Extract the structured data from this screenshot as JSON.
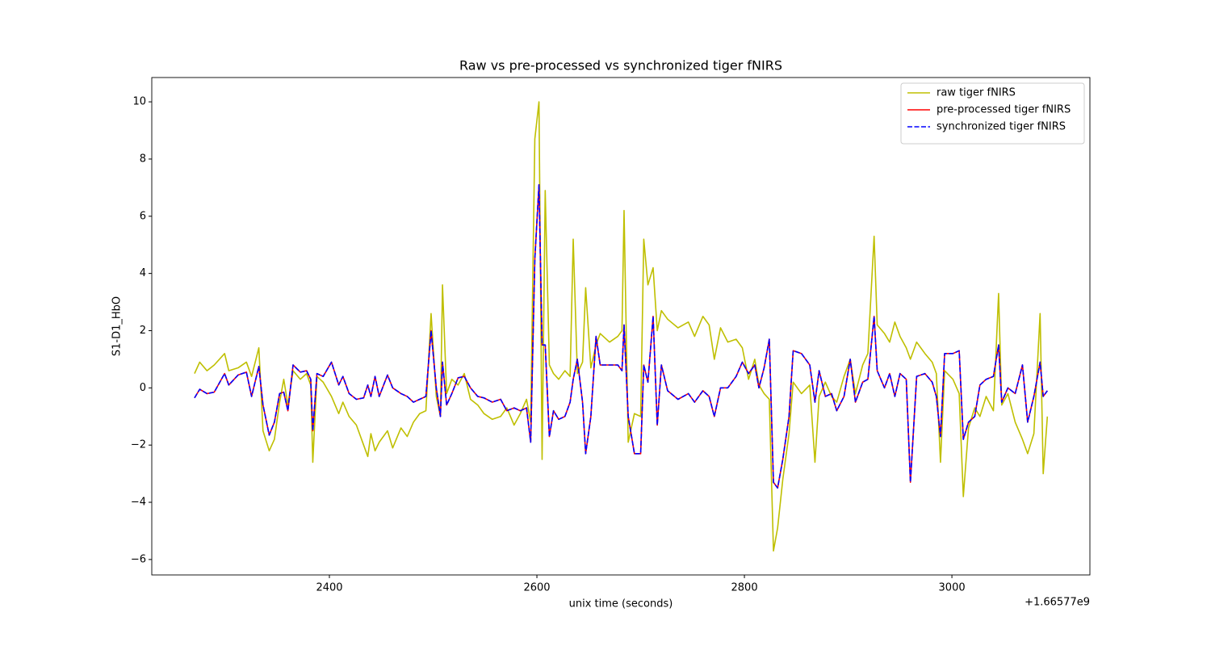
{
  "chart_data": {
    "type": "line",
    "title": "Raw vs pre-processed vs synchronized tiger fNIRS",
    "x_label": "unix time (seconds)",
    "y_label": "S1-D1_HbO",
    "x_offset_label": "+1.66577e9",
    "xlim": [
      2228.8,
      3133
    ],
    "ylim": [
      -6.54,
      10.85
    ],
    "xticks": [
      2400,
      2600,
      2800,
      3000
    ],
    "yticks": [
      {
        "value": -6,
        "label": "−6"
      },
      {
        "value": -4,
        "label": "−4"
      },
      {
        "value": -2,
        "label": "−2"
      },
      0,
      2,
      4,
      6,
      8,
      10
    ],
    "legend": "upper right",
    "x": [
      2270,
      2275,
      2282,
      2289,
      2299,
      2303,
      2312,
      2320,
      2325,
      2332,
      2336,
      2342,
      2347,
      2352,
      2356,
      2360,
      2365,
      2372,
      2378,
      2382,
      2384,
      2388,
      2394,
      2402,
      2409,
      2413,
      2419,
      2426,
      2433,
      2437,
      2440,
      2444,
      2448,
      2456,
      2461,
      2469,
      2475,
      2481,
      2487,
      2493,
      2498,
      2503,
      2507,
      2509,
      2513,
      2518,
      2524,
      2530,
      2536,
      2543,
      2549,
      2557,
      2565,
      2571,
      2578,
      2584,
      2590,
      2594,
      2598,
      2602,
      2605,
      2608,
      2612,
      2616,
      2621,
      2627,
      2632,
      2635,
      2639,
      2644,
      2647,
      2652,
      2657,
      2661,
      2670,
      2678,
      2682,
      2684,
      2688,
      2694,
      2700,
      2703,
      2707,
      2712,
      2716,
      2720,
      2726,
      2736,
      2746,
      2752,
      2760,
      2766,
      2771,
      2777,
      2784,
      2792,
      2798,
      2804,
      2810,
      2814,
      2819,
      2824,
      2828,
      2832,
      2837,
      2843,
      2847,
      2855,
      2863,
      2868,
      2872,
      2878,
      2884,
      2889,
      2896,
      2902,
      2907,
      2914,
      2919,
      2925,
      2928,
      2935,
      2940,
      2945,
      2950,
      2956,
      2960,
      2966,
      2974,
      2981,
      2985,
      2989,
      2993,
      3001,
      3007,
      3011,
      3016,
      3022,
      3027,
      3033,
      3040,
      3045,
      3048,
      3054,
      3061,
      3068,
      3073,
      3079,
      3085,
      3088,
      3092
    ],
    "series": [
      {
        "name": "raw tiger fNIRS",
        "color": "#bfbf00",
        "linestyle": "solid",
        "values": [
          0.5,
          0.9,
          0.6,
          0.8,
          1.2,
          0.6,
          0.7,
          0.9,
          0.4,
          1.4,
          -1.5,
          -2.2,
          -1.8,
          -0.5,
          0.3,
          -0.6,
          0.6,
          0.3,
          0.5,
          0.1,
          -2.6,
          0.4,
          0.2,
          -0.3,
          -0.9,
          -0.5,
          -1.0,
          -1.3,
          -2.0,
          -2.4,
          -1.6,
          -2.2,
          -1.9,
          -1.5,
          -2.1,
          -1.4,
          -1.7,
          -1.2,
          -0.9,
          -0.8,
          2.6,
          -0.3,
          -1.0,
          3.6,
          -0.2,
          0.3,
          0.1,
          0.5,
          -0.4,
          -0.6,
          -0.9,
          -1.1,
          -1.0,
          -0.7,
          -1.3,
          -0.9,
          -0.4,
          -1.2,
          8.7,
          10.0,
          -2.5,
          6.9,
          0.8,
          0.5,
          0.3,
          0.6,
          0.4,
          5.2,
          0.5,
          0.9,
          3.5,
          0.7,
          1.5,
          1.9,
          1.6,
          1.8,
          2.0,
          6.2,
          -1.9,
          -0.9,
          -1.0,
          5.2,
          3.6,
          4.2,
          2.0,
          2.7,
          2.4,
          2.1,
          2.3,
          1.8,
          2.5,
          2.2,
          1.0,
          2.1,
          1.6,
          1.7,
          1.4,
          0.3,
          1.0,
          0.1,
          -0.2,
          -0.4,
          -5.7,
          -4.9,
          -3.2,
          -1.6,
          0.2,
          -0.2,
          0.1,
          -2.6,
          -0.3,
          0.2,
          -0.3,
          -0.5,
          0.4,
          1.0,
          -0.2,
          0.8,
          1.2,
          5.3,
          2.2,
          1.9,
          1.6,
          2.3,
          1.8,
          1.4,
          1.0,
          1.6,
          1.2,
          0.9,
          0.5,
          -2.6,
          0.6,
          0.3,
          -0.2,
          -3.8,
          -1.4,
          -0.7,
          -1.0,
          -0.3,
          -0.8,
          3.3,
          -0.6,
          -0.2,
          -1.2,
          -1.8,
          -2.3,
          -1.6,
          2.6,
          -3.0,
          -1.0
        ]
      },
      {
        "name": "pre-processed tiger fNIRS",
        "color": "#ff0000",
        "linestyle": "solid",
        "values": [
          -0.35,
          -0.05,
          -0.2,
          -0.15,
          0.5,
          0.1,
          0.45,
          0.55,
          -0.3,
          0.75,
          -0.6,
          -1.65,
          -1.2,
          -0.2,
          -0.15,
          -0.8,
          0.8,
          0.55,
          0.6,
          0.3,
          -1.5,
          0.5,
          0.4,
          0.9,
          0.1,
          0.4,
          -0.2,
          -0.4,
          -0.35,
          0.1,
          -0.3,
          0.4,
          -0.3,
          0.45,
          0.0,
          -0.2,
          -0.3,
          -0.5,
          -0.4,
          -0.3,
          2.0,
          0.0,
          -1.0,
          0.9,
          -0.6,
          -0.2,
          0.35,
          0.4,
          0.0,
          -0.3,
          -0.35,
          -0.5,
          -0.4,
          -0.8,
          -0.7,
          -0.8,
          -0.7,
          -1.9,
          4.5,
          7.1,
          1.5,
          1.5,
          -1.7,
          -0.8,
          -1.1,
          -1.0,
          -0.5,
          0.3,
          1.0,
          -0.5,
          -2.3,
          -1.0,
          1.8,
          0.8,
          0.8,
          0.8,
          0.6,
          2.2,
          -1.0,
          -2.3,
          -2.3,
          0.8,
          0.2,
          2.5,
          -1.3,
          0.8,
          -0.1,
          -0.4,
          -0.2,
          -0.5,
          -0.1,
          -0.3,
          -1.0,
          0.0,
          0.0,
          0.4,
          0.9,
          0.5,
          0.8,
          0.0,
          0.7,
          1.7,
          -3.3,
          -3.5,
          -2.5,
          -1.0,
          1.3,
          1.2,
          0.8,
          -0.5,
          0.6,
          -0.3,
          -0.2,
          -0.8,
          -0.3,
          1.0,
          -0.5,
          0.2,
          0.3,
          2.5,
          0.6,
          0.0,
          0.5,
          -0.3,
          0.5,
          0.3,
          -3.3,
          0.4,
          0.5,
          0.2,
          -0.3,
          -1.7,
          1.2,
          1.2,
          1.3,
          -1.8,
          -1.2,
          -1.0,
          0.1,
          0.3,
          0.4,
          1.5,
          -0.5,
          0.0,
          -0.2,
          0.8,
          -1.2,
          -0.3,
          0.9,
          -0.3,
          -0.1
        ]
      },
      {
        "name": "synchronized tiger fNIRS",
        "color": "#0000ff",
        "linestyle": "dashed",
        "values": [
          -0.35,
          -0.05,
          -0.2,
          -0.15,
          0.5,
          0.1,
          0.45,
          0.55,
          -0.3,
          0.75,
          -0.6,
          -1.65,
          -1.2,
          -0.2,
          -0.15,
          -0.8,
          0.8,
          0.55,
          0.6,
          0.3,
          -1.5,
          0.5,
          0.4,
          0.9,
          0.1,
          0.4,
          -0.2,
          -0.4,
          -0.35,
          0.1,
          -0.3,
          0.4,
          -0.3,
          0.45,
          0.0,
          -0.2,
          -0.3,
          -0.5,
          -0.4,
          -0.3,
          2.0,
          0.0,
          -1.0,
          0.9,
          -0.6,
          -0.2,
          0.35,
          0.4,
          0.0,
          -0.3,
          -0.35,
          -0.5,
          -0.4,
          -0.8,
          -0.7,
          -0.8,
          -0.7,
          -1.9,
          4.5,
          7.1,
          1.5,
          1.5,
          -1.7,
          -0.8,
          -1.1,
          -1.0,
          -0.5,
          0.3,
          1.0,
          -0.5,
          -2.3,
          -1.0,
          1.8,
          0.8,
          0.8,
          0.8,
          0.6,
          2.2,
          -1.0,
          -2.3,
          -2.3,
          0.8,
          0.2,
          2.5,
          -1.3,
          0.8,
          -0.1,
          -0.4,
          -0.2,
          -0.5,
          -0.1,
          -0.3,
          -1.0,
          0.0,
          0.0,
          0.4,
          0.9,
          0.5,
          0.8,
          0.0,
          0.7,
          1.7,
          -3.3,
          -3.5,
          -2.5,
          -1.0,
          1.3,
          1.2,
          0.8,
          -0.5,
          0.6,
          -0.3,
          -0.2,
          -0.8,
          -0.3,
          1.0,
          -0.5,
          0.2,
          0.3,
          2.5,
          0.6,
          0.0,
          0.5,
          -0.3,
          0.5,
          0.3,
          -3.3,
          0.4,
          0.5,
          0.2,
          -0.3,
          -1.7,
          1.2,
          1.2,
          1.3,
          -1.8,
          -1.2,
          -1.0,
          0.1,
          0.3,
          0.4,
          1.5,
          -0.5,
          0.0,
          -0.2,
          0.8,
          -1.2,
          -0.3,
          0.9,
          -0.3,
          -0.1
        ]
      }
    ]
  }
}
